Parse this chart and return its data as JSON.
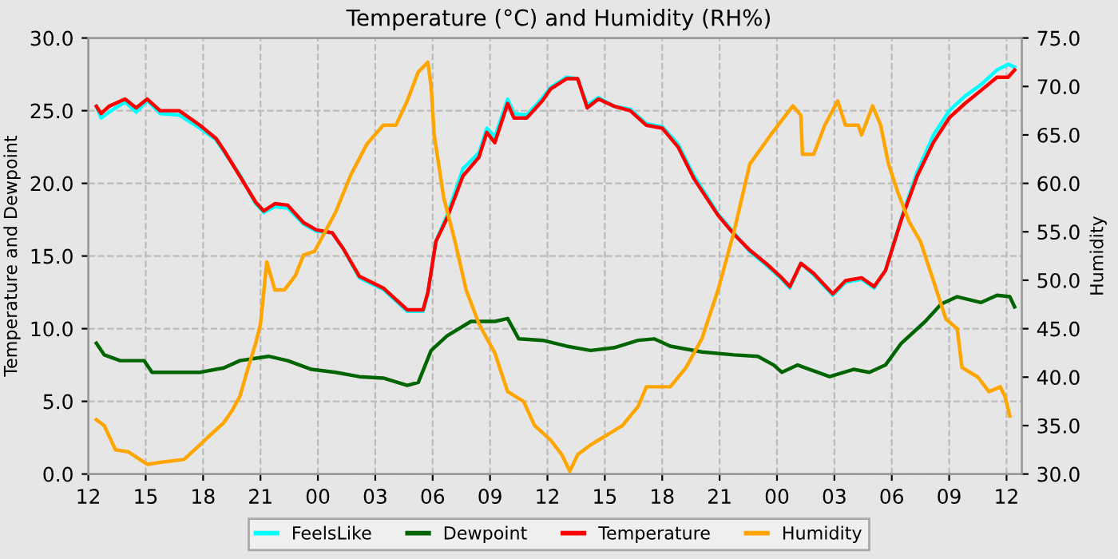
{
  "chart_data": {
    "type": "line",
    "title": "Temperature (°C) and Humidity (RH%)",
    "ylabel": "Temperature and Dewpoint",
    "y2label": "Humidity",
    "xlim": [
      12,
      60.8
    ],
    "xticks": [
      {
        "value": 12,
        "label": "12"
      },
      {
        "value": 15,
        "label": "15"
      },
      {
        "value": 18,
        "label": "18"
      },
      {
        "value": 21,
        "label": "21"
      },
      {
        "value": 24,
        "label": "00"
      },
      {
        "value": 27,
        "label": "03"
      },
      {
        "value": 30,
        "label": "06"
      },
      {
        "value": 33,
        "label": "09"
      },
      {
        "value": 36,
        "label": "12"
      },
      {
        "value": 39,
        "label": "15"
      },
      {
        "value": 42,
        "label": "18"
      },
      {
        "value": 45,
        "label": "21"
      },
      {
        "value": 48,
        "label": "00"
      },
      {
        "value": 51,
        "label": "03"
      },
      {
        "value": 54,
        "label": "06"
      },
      {
        "value": 57,
        "label": "09"
      },
      {
        "value": 60,
        "label": "12"
      }
    ],
    "ylim": [
      0,
      30
    ],
    "yticks": [
      {
        "value": 0,
        "label": "0.0"
      },
      {
        "value": 5,
        "label": "5.0"
      },
      {
        "value": 10,
        "label": "10.0"
      },
      {
        "value": 15,
        "label": "15.0"
      },
      {
        "value": 20,
        "label": "20.0"
      },
      {
        "value": 25,
        "label": "25.0"
      },
      {
        "value": 30,
        "label": "30.0"
      }
    ],
    "y2lim": [
      30,
      75
    ],
    "y2ticks": [
      {
        "value": 30,
        "label": "30.0"
      },
      {
        "value": 35,
        "label": "35.0"
      },
      {
        "value": 40,
        "label": "40.0"
      },
      {
        "value": 45,
        "label": "45.0"
      },
      {
        "value": 50,
        "label": "50.0"
      },
      {
        "value": 55,
        "label": "55.0"
      },
      {
        "value": 60,
        "label": "60.0"
      },
      {
        "value": 65,
        "label": "65.0"
      },
      {
        "value": 70,
        "label": "70.0"
      },
      {
        "value": 75,
        "label": "75.0"
      }
    ],
    "grid": true,
    "legend": "bottom",
    "marker": "none",
    "line_style": "solid",
    "series": [
      {
        "name": "FeelsLike",
        "color": "#00ffff",
        "x": [
          12.42,
          12.67,
          13.08,
          13.92,
          14.5,
          15.08,
          15.75,
          16.75,
          17.83,
          18.67,
          19.08,
          19.92,
          20.75,
          21.17,
          21.75,
          22.42,
          23.25,
          23.92,
          24.75,
          25.33,
          26.17,
          27.42,
          28.67,
          29.5,
          29.75,
          30.17,
          30.75,
          31.58,
          32.42,
          32.83,
          33.25,
          33.92,
          34.25,
          34.92,
          35.75,
          36.17,
          37,
          37.58,
          38.08,
          38.67,
          39.5,
          40.33,
          41.17,
          42,
          42.83,
          43.67,
          44.92,
          45.75,
          46.58,
          47.42,
          48.25,
          48.67,
          49.25,
          49.92,
          50.92,
          51.58,
          52.42,
          53.08,
          53.67,
          54.5,
          55.33,
          56.17,
          57,
          57.83,
          58.67,
          59.5,
          60.08,
          60.42
        ],
        "values": [
          25.3,
          24.5,
          24.9,
          25.6,
          24.9,
          25.7,
          24.8,
          24.7,
          23.8,
          23.0,
          22.2,
          20.6,
          18.6,
          18.0,
          18.4,
          18.3,
          17.2,
          16.7,
          16.6,
          15.5,
          13.5,
          12.7,
          11.2,
          11.2,
          12.4,
          16.0,
          17.8,
          21.0,
          22.1,
          23.8,
          23.2,
          25.8,
          24.8,
          24.7,
          25.9,
          26.6,
          27.3,
          27.2,
          25.4,
          25.9,
          25.3,
          25.1,
          24.1,
          23.9,
          22.7,
          20.5,
          17.9,
          16.6,
          15.3,
          14.4,
          13.4,
          12.8,
          14.5,
          13.7,
          12.3,
          13.2,
          13.4,
          12.8,
          14.0,
          17.6,
          20.8,
          23.3,
          25.0,
          26.0,
          26.8,
          27.8,
          28.2,
          28.0
        ]
      },
      {
        "name": "Dewpoint",
        "color": "#006400",
        "x": [
          12.42,
          12.83,
          13.67,
          14.92,
          15.33,
          16.58,
          17.83,
          19.08,
          19.92,
          21.42,
          22.42,
          23.67,
          24.92,
          26.17,
          27.42,
          28.67,
          29.25,
          29.92,
          30.75,
          32,
          33.25,
          33.92,
          34.5,
          35.75,
          37,
          38.25,
          39.5,
          40.75,
          41.58,
          42.42,
          44.08,
          45.75,
          47,
          47.83,
          48.25,
          49.08,
          49.92,
          50.75,
          52,
          52.83,
          53.67,
          54.5,
          55.75,
          56.58,
          57.42,
          58.67,
          59.5,
          60.17,
          60.42
        ],
        "values": [
          9.0,
          8.2,
          7.8,
          7.8,
          7.0,
          7.0,
          7.0,
          7.3,
          7.8,
          8.1,
          7.8,
          7.2,
          7.0,
          6.7,
          6.6,
          6.1,
          6.3,
          8.5,
          9.5,
          10.5,
          10.5,
          10.7,
          9.3,
          9.2,
          8.8,
          8.5,
          8.7,
          9.2,
          9.3,
          8.8,
          8.4,
          8.2,
          8.1,
          7.5,
          7.0,
          7.5,
          7.1,
          6.7,
          7.2,
          7.0,
          7.5,
          9.0,
          10.5,
          11.7,
          12.2,
          11.8,
          12.3,
          12.2,
          11.5
        ]
      },
      {
        "name": "Temperature",
        "color": "#ff0000",
        "x": [
          12.42,
          12.67,
          13.08,
          13.92,
          14.5,
          15.08,
          15.75,
          16.75,
          17.83,
          18.67,
          19.08,
          19.92,
          20.75,
          21.17,
          21.75,
          22.42,
          23.25,
          23.92,
          24.75,
          25.33,
          26.17,
          27.42,
          28.67,
          29.5,
          29.75,
          30.17,
          30.75,
          31.58,
          32.42,
          32.83,
          33.25,
          33.92,
          34.25,
          34.92,
          35.75,
          36.17,
          37,
          37.58,
          38.08,
          38.67,
          39.5,
          40.33,
          41.17,
          42,
          42.83,
          43.67,
          44.92,
          45.75,
          46.58,
          47.42,
          48.25,
          48.67,
          49.25,
          49.92,
          50.92,
          51.58,
          52.42,
          53.08,
          53.67,
          54.5,
          55.33,
          56.17,
          57,
          57.83,
          58.67,
          59.5,
          60.08,
          60.42
        ],
        "values": [
          25.3,
          24.8,
          25.3,
          25.8,
          25.2,
          25.8,
          25.0,
          25.0,
          24.0,
          23.1,
          22.3,
          20.5,
          18.7,
          18.1,
          18.6,
          18.5,
          17.3,
          16.8,
          16.6,
          15.5,
          13.6,
          12.8,
          11.3,
          11.3,
          12.5,
          16.0,
          17.6,
          20.5,
          21.8,
          23.5,
          22.8,
          25.5,
          24.5,
          24.5,
          25.7,
          26.5,
          27.2,
          27.2,
          25.2,
          25.8,
          25.3,
          25.0,
          24.0,
          23.8,
          22.5,
          20.3,
          17.8,
          16.5,
          15.4,
          14.5,
          13.5,
          12.9,
          14.5,
          13.8,
          12.4,
          13.3,
          13.5,
          12.9,
          14.0,
          17.5,
          20.5,
          22.8,
          24.5,
          25.5,
          26.4,
          27.3,
          27.3,
          27.8
        ]
      },
      {
        "name": "Humidity",
        "color": "#ffa500",
        "axis": "y2",
        "x": [
          12.42,
          12.83,
          13.42,
          14.08,
          15.08,
          15.75,
          17,
          17.83,
          18.25,
          19.08,
          19.5,
          19.92,
          20.33,
          20.75,
          21,
          21.33,
          21.75,
          22.25,
          22.83,
          23.25,
          23.83,
          24.92,
          25.75,
          26.58,
          27.42,
          28.08,
          28.67,
          29.25,
          29.75,
          29.92,
          30.08,
          30.58,
          31.17,
          31.75,
          32.42,
          32.83,
          33.25,
          33.92,
          34.75,
          35.33,
          36.17,
          36.75,
          37.17,
          37.58,
          38.25,
          38.92,
          39.92,
          40.75,
          41.17,
          42.42,
          43.25,
          44.08,
          44.92,
          45.75,
          46.58,
          47.67,
          48.83,
          49.25,
          49.33,
          49.92,
          50.5,
          51.17,
          51.58,
          52.25,
          52.42,
          53,
          53.42,
          53.83,
          54.33,
          54.92,
          55.5,
          56.17,
          56.83,
          57.42,
          57.67,
          58.5,
          59.08,
          59.67,
          59.92,
          60.17
        ],
        "values": [
          35.6,
          35.0,
          32.5,
          32.3,
          31.0,
          31.2,
          31.5,
          33.0,
          33.8,
          35.3,
          36.5,
          38.0,
          40.8,
          43.5,
          45.5,
          51.9,
          49.0,
          49.0,
          50.5,
          52.6,
          53.0,
          57.0,
          61.0,
          64.1,
          66.0,
          66.0,
          68.5,
          71.5,
          72.5,
          70.0,
          65.0,
          58.5,
          54.0,
          49.0,
          45.5,
          44.0,
          42.5,
          38.5,
          37.5,
          35.0,
          33.5,
          32.0,
          30.3,
          32.0,
          33.0,
          33.8,
          35.0,
          37.0,
          39.0,
          39.0,
          41.0,
          44.0,
          49.0,
          55.0,
          62.0,
          65.0,
          68.0,
          67.0,
          63.0,
          63.0,
          66.0,
          68.5,
          66.0,
          66.0,
          65.0,
          68.0,
          66.0,
          62.0,
          59.0,
          56.0,
          54.0,
          50.0,
          46.0,
          45.0,
          41.0,
          40.0,
          38.5,
          39.0,
          38.0,
          36.0
        ]
      }
    ]
  }
}
